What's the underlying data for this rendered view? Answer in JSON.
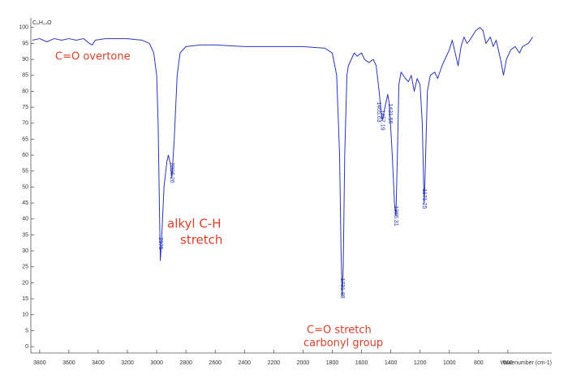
{
  "chart_data": {
    "type": "line",
    "title": "C₆H₁₄O",
    "xlabel": "Wavenumber (cm-1)",
    "x": [
      3850,
      3800,
      3750,
      3700,
      3650,
      3600,
      3550,
      3500,
      3460,
      3440,
      3420,
      3350,
      3200,
      3100,
      3050,
      3020,
      3000,
      2990,
      2980,
      2975,
      2965,
      2950,
      2930,
      2920,
      2905,
      2896,
      2880,
      2860,
      2840,
      2800,
      2700,
      2600,
      2400,
      2200,
      2000,
      1850,
      1800,
      1770,
      1750,
      1740,
      1731.88,
      1725,
      1715,
      1700,
      1690,
      1670,
      1650,
      1630,
      1600,
      1580,
      1550,
      1520,
      1500,
      1480,
      1465,
      1457,
      1440,
      1421,
      1410,
      1390,
      1375,
      1365,
      1355,
      1345,
      1330,
      1300,
      1280,
      1260,
      1240,
      1220,
      1200,
      1185,
      1175,
      1171,
      1165,
      1150,
      1130,
      1100,
      1080,
      1050,
      1000,
      980,
      960,
      940,
      920,
      900,
      880,
      860,
      820,
      790,
      770,
      750,
      720,
      700,
      680,
      650,
      630,
      610,
      580,
      550,
      520,
      500,
      460,
      430
    ],
    "series": [
      {
        "name": "C₆H₁₄O",
        "color": "#2a36b8",
        "values": [
          96,
          96.5,
          95.5,
          96.5,
          96,
          96.5,
          96,
          96.5,
          95,
          94.5,
          96,
          96.5,
          96.5,
          96,
          95,
          92,
          85,
          70,
          40,
          27,
          35,
          50,
          58,
          60,
          57,
          53,
          65,
          85,
          92,
          94,
          94.5,
          94.5,
          94,
          94,
          94,
          93.5,
          92,
          85,
          60,
          30,
          16,
          25,
          60,
          85,
          88,
          90,
          92,
          91,
          92,
          90,
          89,
          90,
          88,
          80,
          73,
          71,
          75,
          79,
          76,
          60,
          45,
          41,
          60,
          82,
          86,
          84,
          83,
          85,
          80,
          84,
          82,
          70,
          50,
          45,
          55,
          80,
          85,
          86,
          84,
          88,
          93,
          96,
          92,
          88,
          94,
          97,
          95,
          96,
          99,
          100,
          99,
          95,
          97,
          94,
          96,
          90,
          85,
          90,
          93,
          94,
          92,
          94,
          95,
          97
        ]
      }
    ],
    "xlim": [
      3860,
      300
    ],
    "ylim": [
      -2,
      103
    ],
    "xticks": [
      3800,
      3600,
      3400,
      3200,
      3000,
      2800,
      2600,
      2400,
      2200,
      2000,
      1800,
      1600,
      1400,
      1200,
      1000,
      800,
      600
    ],
    "yticks": [
      0,
      5,
      10,
      15,
      20,
      25,
      30,
      35,
      40,
      45,
      50,
      55,
      60,
      65,
      70,
      75,
      80,
      85,
      90,
      95,
      100
    ],
    "peaks": [
      2975,
      2896.26,
      1731.88,
      1465.63,
      1457.19,
      1421.56,
      1365.31,
      1171.25
    ],
    "annotations": [
      "C=O overtone",
      "alkyl C-H",
      "stretch",
      "C=O stretch",
      "carbonyl group"
    ]
  }
}
